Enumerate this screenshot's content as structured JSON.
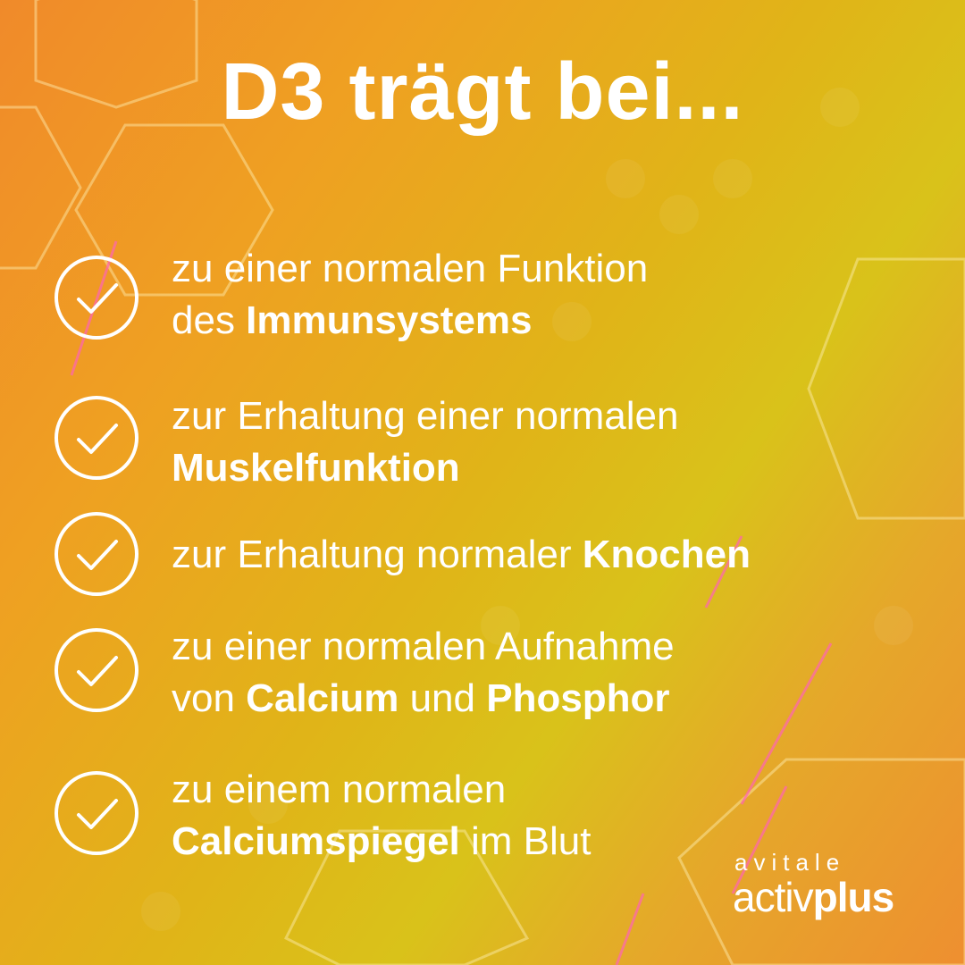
{
  "title": "D3 trägt bei...",
  "items": [
    {
      "lines": [
        [
          {
            "t": "zu einer normalen Funktion",
            "b": false
          }
        ],
        [
          {
            "t": "des ",
            "b": false
          },
          {
            "t": "Immunsystems",
            "b": true
          }
        ]
      ]
    },
    {
      "lines": [
        [
          {
            "t": "zur Erhaltung einer normalen",
            "b": false
          }
        ],
        [
          {
            "t": "Muskelfunktion",
            "b": true
          }
        ]
      ]
    },
    {
      "lines": [
        [
          {
            "t": "zur Erhaltung normaler ",
            "b": false
          },
          {
            "t": "Knochen",
            "b": true
          }
        ]
      ]
    },
    {
      "lines": [
        [
          {
            "t": "zu einer normalen Aufnahme",
            "b": false
          }
        ],
        [
          {
            "t": "von ",
            "b": false
          },
          {
            "t": "Calcium",
            "b": true
          },
          {
            "t": " und ",
            "b": false
          },
          {
            "t": "Phosphor",
            "b": true
          }
        ]
      ]
    },
    {
      "lines": [
        [
          {
            "t": "zu einem normalen",
            "b": false
          }
        ],
        [
          {
            "t": "Calciumspiegel",
            "b": true
          },
          {
            "t": " im Blut",
            "b": false
          }
        ]
      ]
    }
  ],
  "icon": "check-circle-icon",
  "logo": {
    "brand": "avitale",
    "product_light": "activ",
    "product_bold": "plus"
  },
  "colors": {
    "orange": "#f08a2a",
    "yellow": "#d9c21a",
    "accent_pink": "#f060b0"
  }
}
